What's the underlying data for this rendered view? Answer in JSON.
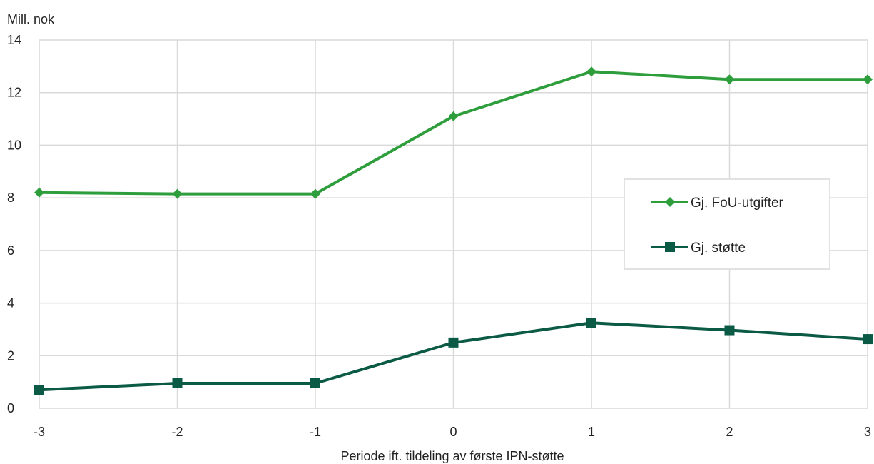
{
  "chart_data": {
    "type": "line",
    "ylabel": "Mill. nok",
    "xlabel": "Periode ift. tildeling av første IPN-støtte",
    "categories": [
      "-3",
      "-2",
      "-1",
      "0",
      "1",
      "2",
      "3"
    ],
    "x": [
      -3,
      -2,
      -1,
      0,
      1,
      2,
      3
    ],
    "ylim": [
      0,
      14
    ],
    "yticks": [
      0,
      2,
      4,
      6,
      8,
      10,
      12,
      14
    ],
    "grid": true,
    "legend_position": "right",
    "series": [
      {
        "name": "Gj. FoU-utgifter",
        "values": [
          8.2,
          8.15,
          8.15,
          11.1,
          12.8,
          12.5,
          12.5
        ],
        "color": "#2e9e3c",
        "marker": "diamond"
      },
      {
        "name": "Gj. støtte",
        "values": [
          0.7,
          0.95,
          0.95,
          2.5,
          3.25,
          2.97,
          2.63
        ],
        "color": "#0b5a45",
        "marker": "square"
      }
    ]
  }
}
